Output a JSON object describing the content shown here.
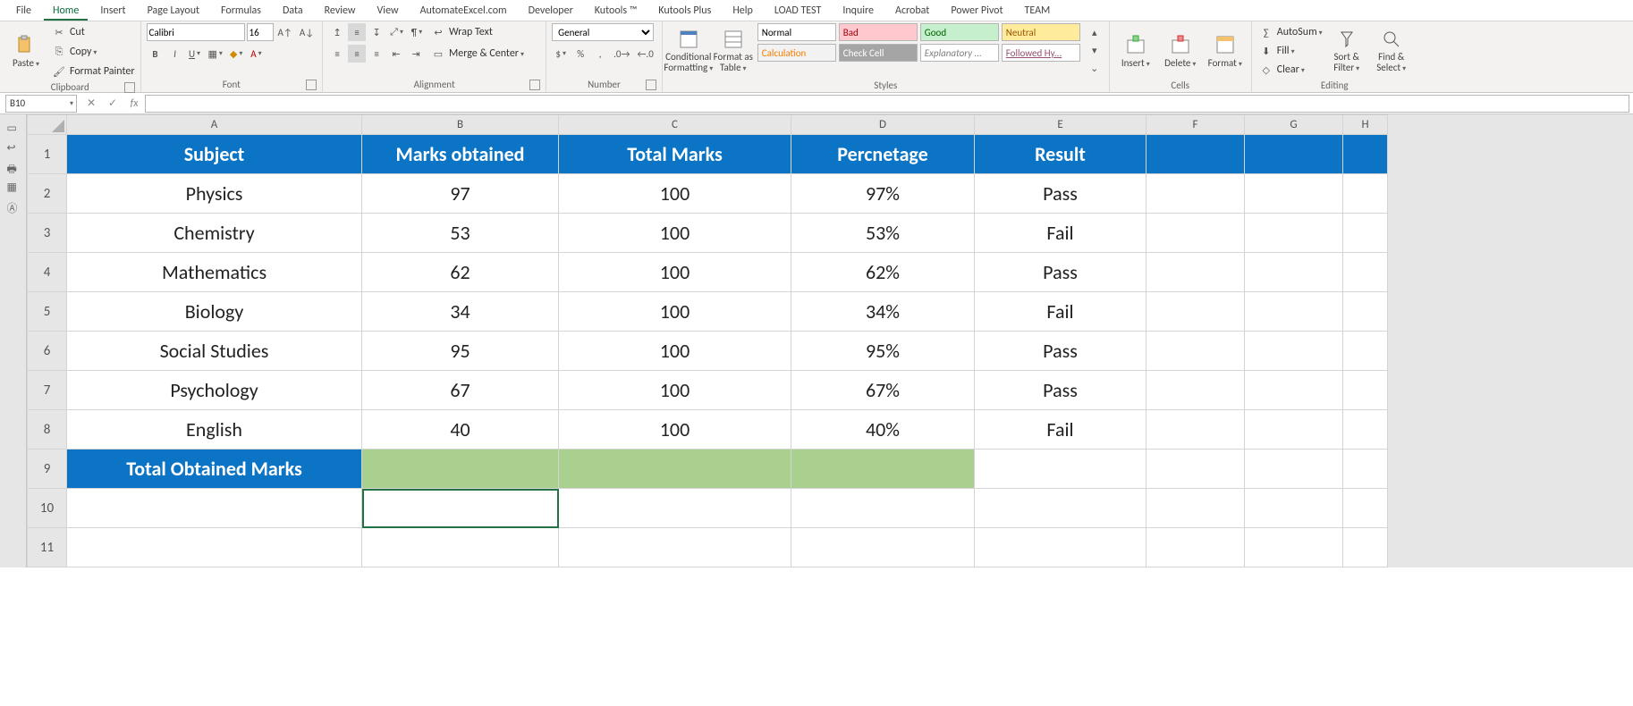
{
  "tabs": [
    "File",
    "Home",
    "Insert",
    "Page Layout",
    "Formulas",
    "Data",
    "Review",
    "View",
    "AutomateExcel.com",
    "Developer",
    "Kutools ™",
    "Kutools Plus",
    "Help",
    "LOAD TEST",
    "Inquire",
    "Acrobat",
    "Power Pivot",
    "TEAM"
  ],
  "activeTab": "Home",
  "clipboard": {
    "paste": "Paste",
    "cut": "Cut",
    "copy": "Copy",
    "painter": "Format Painter",
    "label": "Clipboard"
  },
  "font": {
    "name": "Calibri",
    "size": "16",
    "label": "Font"
  },
  "align": {
    "wrap": "Wrap Text",
    "merge": "Merge & Center",
    "label": "Alignment"
  },
  "number": {
    "format": "General",
    "label": "Number"
  },
  "styles": {
    "cf": "Conditional Formatting",
    "fat": "Format as Table",
    "cells": [
      {
        "t": "Normal",
        "fg": "#000",
        "bg": "#fff"
      },
      {
        "t": "Bad",
        "fg": "#9c0006",
        "bg": "#ffc7ce"
      },
      {
        "t": "Good",
        "fg": "#006100",
        "bg": "#c6efce"
      },
      {
        "t": "Neutral",
        "fg": "#9c5700",
        "bg": "#ffeb9c"
      },
      {
        "t": "Calculation",
        "fg": "#fa7d00",
        "bg": "#f2f2f2"
      },
      {
        "t": "Check Cell",
        "fg": "#ffffff",
        "bg": "#a5a5a5"
      },
      {
        "t": "Explanatory ...",
        "fg": "#7f7f7f",
        "bg": "#fff",
        "italic": true
      },
      {
        "t": "Followed Hy...",
        "fg": "#954f72",
        "bg": "#fff",
        "ul": true
      }
    ],
    "label": "Styles"
  },
  "cells": {
    "ins": "Insert",
    "del": "Delete",
    "fmt": "Format",
    "label": "Cells"
  },
  "editing": {
    "sum": "AutoSum",
    "fill": "Fill",
    "clear": "Clear",
    "sort": "Sort & Filter",
    "find": "Find & Select",
    "label": "Editing"
  },
  "namebox": "B10",
  "columns": [
    "A",
    "B",
    "C",
    "D",
    "E",
    "F",
    "G",
    "H"
  ],
  "colClasses": [
    "cA",
    "cB",
    "cC",
    "cD",
    "cE",
    "cF",
    "cG",
    "cH"
  ],
  "headerRow": {
    "A": "Subject",
    "B": "Marks obtained",
    "C": "Total Marks",
    "D": "Percnetage",
    "E": "Result"
  },
  "dataRows": [
    {
      "A": "Physics",
      "B": "97",
      "C": "100",
      "D": "97%",
      "E": "Pass"
    },
    {
      "A": "Chemistry",
      "B": "53",
      "C": "100",
      "D": "53%",
      "E": "Fail"
    },
    {
      "A": "Mathematics",
      "B": "62",
      "C": "100",
      "D": "62%",
      "E": "Pass"
    },
    {
      "A": "Biology",
      "B": "34",
      "C": "100",
      "D": "34%",
      "E": "Fail"
    },
    {
      "A": "Social Studies",
      "B": "95",
      "C": "100",
      "D": "95%",
      "E": "Pass"
    },
    {
      "A": "Psychology",
      "B": "67",
      "C": "100",
      "D": "67%",
      "E": "Pass"
    },
    {
      "A": "English",
      "B": "40",
      "C": "100",
      "D": "40%",
      "E": "Fail"
    }
  ],
  "totalRow": {
    "A": "Total Obtained Marks"
  },
  "selected": "B10",
  "blankRows": 2
}
